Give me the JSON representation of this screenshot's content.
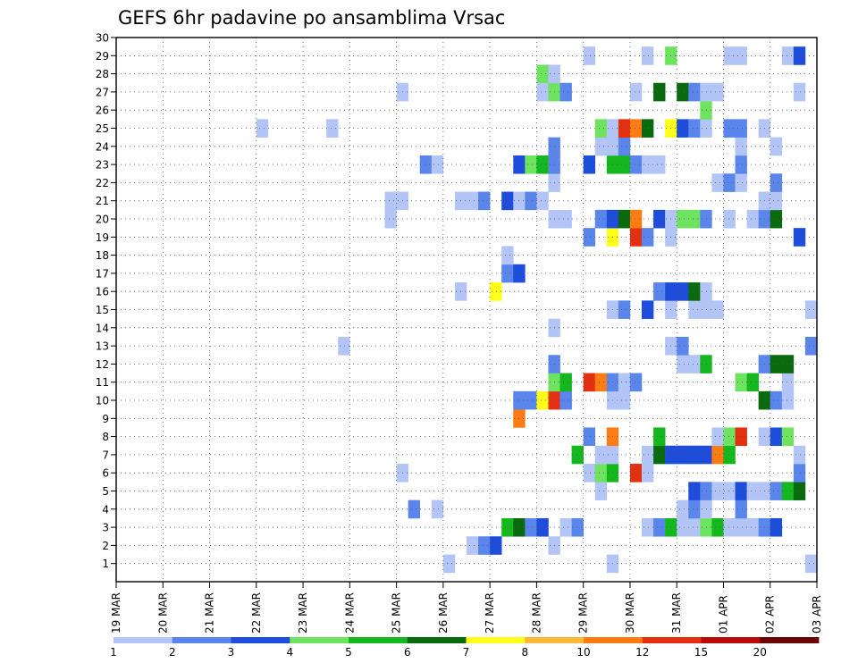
{
  "chart_data": {
    "type": "heatmap",
    "title": "GEFS 6hr padavine po ansamblima Vrsac",
    "xlabel": "",
    "ylabel": "",
    "x_ticks": [
      "19 MAR",
      "20 MAR",
      "21 MAR",
      "22 MAR",
      "23 MAR",
      "24 MAR",
      "25 MAR",
      "26 MAR",
      "27 MAR",
      "28 MAR",
      "29 MAR",
      "30 MAR",
      "31 MAR",
      "01 APR",
      "02 APR",
      "03 APR"
    ],
    "y_ticks": [
      "1",
      "2",
      "3",
      "4",
      "5",
      "6",
      "7",
      "8",
      "9",
      "10",
      "11",
      "12",
      "13",
      "14",
      "15",
      "16",
      "17",
      "18",
      "19",
      "20",
      "21",
      "22",
      "23",
      "24",
      "25",
      "26",
      "27",
      "28",
      "29",
      "30"
    ],
    "x_range_steps": [
      0,
      60
    ],
    "y_range": [
      0,
      30
    ],
    "grid": true,
    "legend": {
      "position": "bottom",
      "labels": [
        "1",
        "2",
        "3",
        "4",
        "5",
        "6",
        "7",
        "8",
        "10",
        "12",
        "15",
        "20"
      ],
      "colors": [
        "#b3c4f7",
        "#5a85ea",
        "#1f4ddb",
        "#6ee35f",
        "#14b81e",
        "#0a6a0e",
        "#ffff1a",
        "#ffb83a",
        "#ff7b14",
        "#e33010",
        "#b80a0a",
        "#6e0505"
      ]
    },
    "cells": [
      [
        1,
        "1",
        42
      ],
      [
        2,
        "1",
        44
      ],
      [
        2,
        "2",
        45
      ],
      [
        2,
        "3",
        46
      ],
      [
        3,
        "5",
        47
      ],
      [
        3,
        "6",
        48
      ],
      [
        3,
        "2",
        49
      ],
      [
        3,
        "3",
        50
      ],
      [
        2,
        "1",
        51
      ],
      [
        3,
        "1",
        52
      ],
      [
        3,
        "2",
        53
      ],
      [
        1,
        "1",
        56
      ],
      [
        3,
        "1",
        68
      ],
      [
        3,
        "2",
        69
      ],
      [
        3,
        "3",
        70
      ],
      [
        1,
        "1",
        73
      ],
      [
        3,
        "1",
        59
      ],
      [
        3,
        "2",
        60
      ],
      [
        3,
        "5",
        61
      ],
      [
        3,
        "1",
        62
      ],
      [
        3,
        "1",
        63
      ],
      [
        3,
        "4",
        64
      ],
      [
        3,
        "5",
        65
      ],
      [
        3,
        "1",
        66
      ],
      [
        3,
        "1",
        67
      ],
      [
        4,
        "2",
        39
      ],
      [
        4,
        "1",
        41
      ],
      [
        4,
        "1",
        62
      ],
      [
        4,
        "2",
        63
      ],
      [
        4,
        "1",
        64
      ],
      [
        4,
        "2",
        67
      ],
      [
        5,
        "1",
        55
      ],
      [
        5,
        "3",
        63
      ],
      [
        5,
        "2",
        64
      ],
      [
        5,
        "1",
        65
      ],
      [
        5,
        "1",
        66
      ],
      [
        5,
        "3",
        67
      ],
      [
        5,
        "1",
        68
      ],
      [
        5,
        "1",
        69
      ],
      [
        5,
        "2",
        70
      ],
      [
        5,
        "5",
        71
      ],
      [
        5,
        "6",
        72
      ],
      [
        6,
        "1",
        38
      ],
      [
        6,
        "1",
        54
      ],
      [
        6,
        "4",
        55
      ],
      [
        6,
        "5",
        56
      ],
      [
        6,
        "11",
        57
      ],
      [
        6,
        "12",
        58
      ],
      [
        6,
        "1",
        59
      ],
      [
        6,
        "2",
        72
      ],
      [
        7,
        "5",
        53
      ],
      [
        7,
        "1",
        55
      ],
      [
        7,
        "1",
        56
      ],
      [
        7,
        "11",
        58
      ],
      [
        7,
        "1",
        59
      ],
      [
        7,
        "6",
        60
      ],
      [
        7,
        "3",
        61
      ],
      [
        7,
        "3",
        62
      ],
      [
        7,
        "3",
        63
      ],
      [
        7,
        "3",
        64
      ],
      [
        7,
        "10",
        65
      ],
      [
        7,
        "5",
        66
      ],
      [
        7,
        "1",
        72
      ],
      [
        8,
        "2",
        54
      ],
      [
        8,
        "10",
        56
      ],
      [
        8,
        "5",
        60
      ],
      [
        8,
        "1",
        65
      ],
      [
        8,
        "4",
        66
      ],
      [
        8,
        "12",
        67
      ],
      [
        8,
        "11",
        68
      ],
      [
        8,
        "1",
        69
      ],
      [
        8,
        "3",
        70
      ],
      [
        8,
        "4",
        71
      ],
      [
        9,
        "10",
        48
      ],
      [
        10,
        "2",
        48
      ],
      [
        10,
        "2",
        49
      ],
      [
        10,
        "7",
        50
      ],
      [
        10,
        "12",
        51
      ],
      [
        10,
        "2",
        52
      ],
      [
        10,
        "1",
        56
      ],
      [
        10,
        "1",
        57
      ],
      [
        10,
        "6",
        69
      ],
      [
        10,
        "2",
        70
      ],
      [
        10,
        "1",
        71
      ],
      [
        11,
        "4",
        51
      ],
      [
        11,
        "5",
        52
      ],
      [
        11,
        "11",
        53
      ],
      [
        11,
        "12",
        54
      ],
      [
        11,
        "10",
        55
      ],
      [
        11,
        "2",
        56
      ],
      [
        11,
        "1",
        57
      ],
      [
        11,
        "2",
        58
      ],
      [
        11,
        "4",
        67
      ],
      [
        11,
        "5",
        68
      ],
      [
        11,
        "1",
        71
      ],
      [
        12,
        "2",
        51
      ],
      [
        12,
        "1",
        62
      ],
      [
        12,
        "1",
        63
      ],
      [
        12,
        "5",
        64
      ],
      [
        12,
        "2",
        69
      ],
      [
        12,
        "6",
        70
      ],
      [
        12,
        "6",
        71
      ],
      [
        12,
        "9",
        72
      ],
      [
        12,
        "9",
        73
      ],
      [
        13,
        "1",
        33
      ],
      [
        13,
        "1",
        61
      ],
      [
        13,
        "2",
        62
      ],
      [
        13,
        "2",
        73
      ],
      [
        14,
        "1",
        51
      ],
      [
        15,
        "1",
        56
      ],
      [
        15,
        "2",
        57
      ],
      [
        15,
        "3",
        59
      ],
      [
        15,
        "9",
        60
      ],
      [
        15,
        "1",
        61
      ],
      [
        15,
        "1",
        63
      ],
      [
        15,
        "1",
        64
      ],
      [
        15,
        "1",
        65
      ],
      [
        15,
        "1",
        73
      ],
      [
        16,
        "1",
        43
      ],
      [
        16,
        "7",
        46
      ],
      [
        16,
        "2",
        60
      ],
      [
        16,
        "3",
        61
      ],
      [
        16,
        "3",
        62
      ],
      [
        16,
        "6",
        63
      ],
      [
        16,
        "1",
        64
      ],
      [
        17,
        "2",
        47
      ],
      [
        17,
        "3",
        48
      ],
      [
        18,
        "1",
        47
      ],
      [
        19,
        "2",
        54
      ],
      [
        19,
        "9",
        55
      ],
      [
        19,
        "7",
        56
      ],
      [
        19,
        "11",
        57
      ],
      [
        19,
        "12",
        58
      ],
      [
        19,
        "2",
        59
      ],
      [
        19,
        "1",
        61
      ],
      [
        19,
        "3",
        72
      ],
      [
        19,
        "9",
        73
      ],
      [
        20,
        "1",
        37
      ],
      [
        20,
        "1",
        51
      ],
      [
        20,
        "1",
        52
      ],
      [
        20,
        "2",
        55
      ],
      [
        20,
        "3",
        56
      ],
      [
        20,
        "6",
        57
      ],
      [
        20,
        "10",
        58
      ],
      [
        20,
        "11",
        59
      ],
      [
        20,
        "3",
        60
      ],
      [
        20,
        "1",
        61
      ],
      [
        20,
        "4",
        62
      ],
      [
        20,
        "4",
        63
      ],
      [
        20,
        "2",
        64
      ],
      [
        20,
        "1",
        66
      ],
      [
        20,
        "1",
        68
      ],
      [
        20,
        "2",
        69
      ],
      [
        20,
        "6",
        70
      ],
      [
        21,
        "1",
        37
      ],
      [
        21,
        "1",
        38
      ],
      [
        21,
        "1",
        43
      ],
      [
        21,
        "1",
        44
      ],
      [
        21,
        "2",
        45
      ],
      [
        21,
        "3",
        47
      ],
      [
        21,
        "1",
        48
      ],
      [
        21,
        "2",
        49
      ],
      [
        21,
        "1",
        50
      ],
      [
        21,
        "1",
        69
      ],
      [
        21,
        "1",
        70
      ],
      [
        22,
        "1",
        51
      ],
      [
        22,
        "1",
        65
      ],
      [
        22,
        "2",
        66
      ],
      [
        22,
        "1",
        67
      ],
      [
        22,
        "2",
        70
      ],
      [
        23,
        "2",
        40
      ],
      [
        23,
        "1",
        41
      ],
      [
        23,
        "3",
        48
      ],
      [
        23,
        "4",
        49
      ],
      [
        23,
        "5",
        50
      ],
      [
        23,
        "2",
        51
      ],
      [
        23,
        "3",
        54
      ],
      [
        23,
        "9",
        55
      ],
      [
        23,
        "5",
        56
      ],
      [
        23,
        "5",
        57
      ],
      [
        23,
        "2",
        58
      ],
      [
        23,
        "1",
        59
      ],
      [
        23,
        "1",
        60
      ],
      [
        23,
        "2",
        67
      ],
      [
        24,
        "2",
        51
      ],
      [
        24,
        "1",
        55
      ],
      [
        24,
        "1",
        56
      ],
      [
        24,
        "2",
        57
      ],
      [
        24,
        "1",
        67
      ],
      [
        24,
        "1",
        70
      ],
      [
        25,
        "1",
        26
      ],
      [
        25,
        "1",
        32
      ],
      [
        25,
        "4",
        55
      ],
      [
        25,
        "1",
        56
      ],
      [
        25,
        "12",
        57
      ],
      [
        25,
        "10",
        58
      ],
      [
        25,
        "6",
        59
      ],
      [
        25,
        "11",
        60
      ],
      [
        25,
        "7",
        61
      ],
      [
        25,
        "3",
        62
      ],
      [
        25,
        "2",
        63
      ],
      [
        25,
        "1",
        64
      ],
      [
        25,
        "2",
        66
      ],
      [
        25,
        "2",
        67
      ],
      [
        25,
        "1",
        69
      ],
      [
        26,
        "4",
        64
      ],
      [
        27,
        "1",
        38
      ],
      [
        27,
        "1",
        50
      ],
      [
        27,
        "4",
        51
      ],
      [
        27,
        "2",
        52
      ],
      [
        27,
        "1",
        58
      ],
      [
        27,
        "9",
        59
      ],
      [
        27,
        "6",
        60
      ],
      [
        27,
        "9",
        61
      ],
      [
        27,
        "6",
        62
      ],
      [
        27,
        "2",
        63
      ],
      [
        27,
        "1",
        64
      ],
      [
        27,
        "1",
        65
      ],
      [
        27,
        "1",
        72
      ],
      [
        27,
        "9",
        73
      ],
      [
        28,
        "4",
        50
      ],
      [
        28,
        "1",
        51
      ],
      [
        29,
        "1",
        54
      ],
      [
        29,
        "1",
        59
      ],
      [
        29,
        "4",
        61
      ],
      [
        29,
        "1",
        66
      ],
      [
        29,
        "1",
        67
      ],
      [
        29,
        "1",
        71
      ],
      [
        29,
        "3",
        72
      ]
    ]
  }
}
